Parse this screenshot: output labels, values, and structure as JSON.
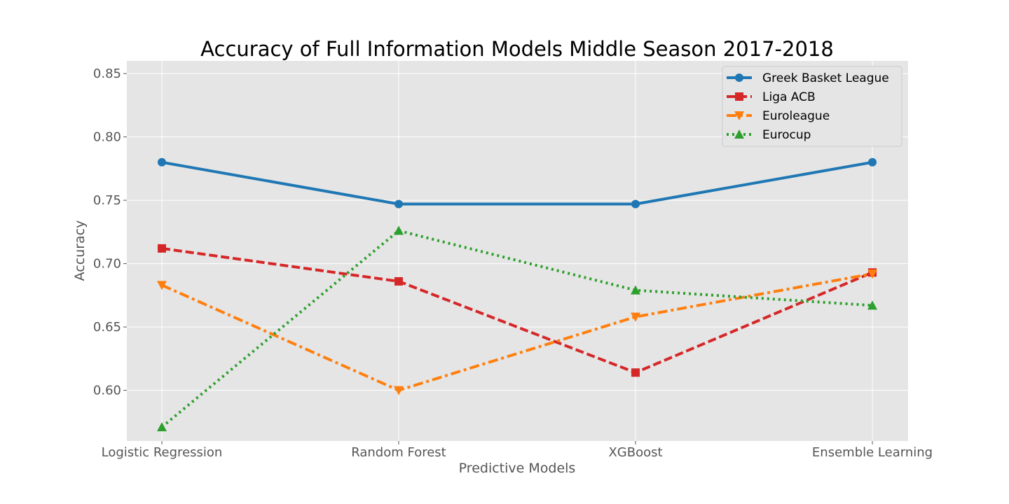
{
  "chart_data": {
    "type": "line",
    "title": "Accuracy of Full Information Models Middle Season 2017-2018",
    "xlabel": "Predictive Models",
    "ylabel": "Accuracy",
    "categories": [
      "Logistic Regression",
      "Random Forest",
      "XGBoost",
      "Ensemble Learning"
    ],
    "ylim": [
      0.56,
      0.86
    ],
    "yticks": [
      0.6,
      0.65,
      0.7,
      0.75,
      0.8,
      0.85
    ],
    "ytick_labels": [
      "0.60",
      "0.65",
      "0.70",
      "0.75",
      "0.80",
      "0.85"
    ],
    "grid": true,
    "legend_position": "top-right",
    "series": [
      {
        "name": "Greek Basket League",
        "values": [
          0.78,
          0.747,
          0.747,
          0.78
        ],
        "color": "#1f77b4",
        "line_style": "solid",
        "marker": "circle"
      },
      {
        "name": "Liga ACB",
        "values": [
          0.712,
          0.686,
          0.614,
          0.693
        ],
        "color": "#d62728",
        "line_style": "dashed",
        "marker": "square"
      },
      {
        "name": "Euroleague",
        "values": [
          0.683,
          0.6,
          0.658,
          0.692
        ],
        "color": "#ff7f0e",
        "line_style": "dashdot",
        "marker": "triangle-down"
      },
      {
        "name": "Eurocup",
        "values": [
          0.571,
          0.726,
          0.679,
          0.667
        ],
        "color": "#2ca02c",
        "line_style": "dotted",
        "marker": "triangle-up"
      }
    ]
  }
}
